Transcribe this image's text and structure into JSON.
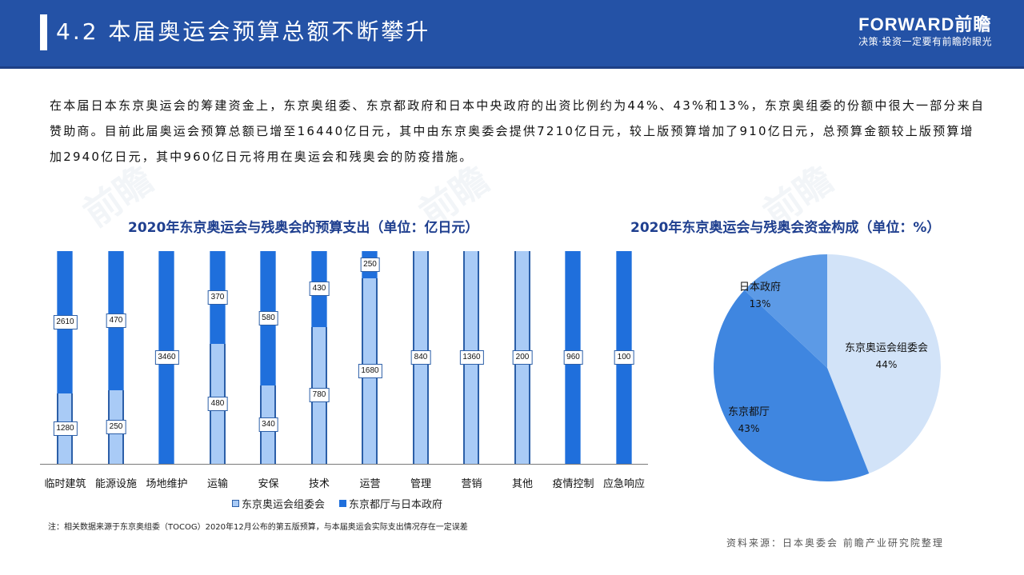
{
  "header": {
    "title": "4.2 本届奥运会预算总额不断攀升",
    "brand_logo": "FORWARD前瞻",
    "brand_slogan": "决策·投资一定要有前瞻的眼光"
  },
  "intro_text": "在本届日本东京奥运会的筹建资金上，东京奥组委、东京都政府和日本中央政府的出资比例约为44%、43%和13%，东京奥组委的份额中很大一部分来自赞助商。目前此届奥运会预算总额已增至16440亿日元，其中由东京奥委会提供7210亿日元，较上版预算增加了910亿日元，总预算金额较上版预算增加2940亿日元，其中960亿日元将用在奥运会和残奥会的防疫措施。",
  "colors": {
    "header_bg": "#2452a6",
    "dark_series": "#1f6fdc",
    "light_series": "#a9cbf6",
    "title_blue": "#1f3f8f"
  },
  "chart_data": [
    {
      "type": "bar",
      "stacked": "percent",
      "title": "2020年东京奥运会与残奥会的预算支出（单位：亿日元）",
      "xlabel": "",
      "ylabel": "",
      "categories": [
        "临时建筑",
        "能源设施",
        "场地维护",
        "运输",
        "安保",
        "技术",
        "运营",
        "管理",
        "营销",
        "其他",
        "疫情控制",
        "应急响应"
      ],
      "series": [
        {
          "name": "东京奥运会组委会",
          "values": [
            1280,
            250,
            0,
            480,
            340,
            780,
            1680,
            840,
            1360,
            200,
            0,
            0
          ]
        },
        {
          "name": "东京都厅与日本政府",
          "values": [
            2610,
            470,
            3460,
            370,
            580,
            430,
            250,
            0,
            0,
            0,
            960,
            100
          ]
        }
      ],
      "legend_position": "bottom",
      "grid": false
    },
    {
      "type": "pie",
      "title": "2020年东京奥运会与残奥会资金构成（单位：%）",
      "categories": [
        "东京奥运会组委会",
        "东京都厅",
        "日本政府"
      ],
      "values": [
        44,
        43,
        13
      ],
      "labels": [
        "44%",
        "43%",
        "13%"
      ]
    }
  ],
  "bar_chart": {
    "title": "2020年东京奥运会与残奥会的预算支出（单位：亿日元）",
    "legend": [
      "东京奥运会组委会",
      "东京都厅与日本政府"
    ],
    "bars": [
      {
        "cat": "临时建筑",
        "light": "1280",
        "dark": "2610"
      },
      {
        "cat": "能源设施",
        "light": "250",
        "dark": "470"
      },
      {
        "cat": "场地维护",
        "light": "",
        "dark": "3460"
      },
      {
        "cat": "运输",
        "light": "480",
        "dark": "370"
      },
      {
        "cat": "安保",
        "light": "340",
        "dark": "580"
      },
      {
        "cat": "技术",
        "light": "780",
        "dark": "430"
      },
      {
        "cat": "运营",
        "light": "1680",
        "dark": "250"
      },
      {
        "cat": "管理",
        "light": "840",
        "dark": ""
      },
      {
        "cat": "营销",
        "light": "1360",
        "dark": ""
      },
      {
        "cat": "其他",
        "light": "200",
        "dark": ""
      },
      {
        "cat": "疫情控制",
        "light": "",
        "dark": "960"
      },
      {
        "cat": "应急响应",
        "light": "",
        "dark": "100"
      }
    ]
  },
  "pie_chart": {
    "title": "2020年东京奥运会与残奥会资金构成（单位：%）",
    "slices": [
      {
        "name": "东京奥运会组委会",
        "pct": "44%",
        "color": "#d2e3f8"
      },
      {
        "name": "东京都厅",
        "pct": "43%",
        "color": "#3f86e0"
      },
      {
        "name": "日本政府",
        "pct": "13%",
        "color": "#5c9ae6"
      }
    ]
  },
  "footer": {
    "note": "注：相关数据来源于东京奥组委（TOCOG）2020年12月公布的第五版预算，与本届奥运会实际支出情况存在一定误差",
    "source": "资料来源：日本奥委会 前瞻产业研究院整理"
  }
}
